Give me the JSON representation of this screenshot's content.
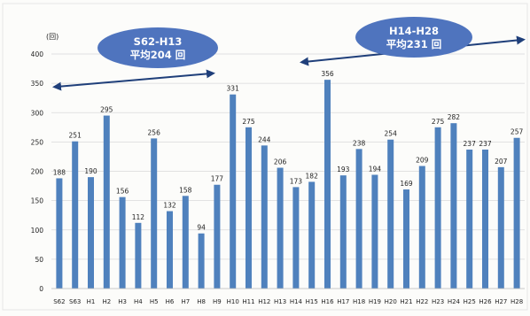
{
  "chart_data": {
    "type": "bar",
    "y_unit": "(回)",
    "ylim": [
      0,
      400
    ],
    "yticks": [
      0,
      50,
      100,
      150,
      200,
      250,
      300,
      350,
      400
    ],
    "grid": true,
    "categories": [
      "S62",
      "S63",
      "H1",
      "H2",
      "H3",
      "H4",
      "H5",
      "H6",
      "H7",
      "H8",
      "H9",
      "H10",
      "H11",
      "H12",
      "H13",
      "H14",
      "H15",
      "H16",
      "H17",
      "H18",
      "H19",
      "H20",
      "H21",
      "H22",
      "H23",
      "H24",
      "H25",
      "H26",
      "H27",
      "H28"
    ],
    "values": [
      188,
      251,
      190,
      295,
      156,
      112,
      256,
      132,
      158,
      94,
      177,
      331,
      275,
      244,
      206,
      173,
      182,
      356,
      193,
      238,
      194,
      254,
      169,
      209,
      275,
      282,
      237,
      237,
      207,
      257
    ],
    "annotations": [
      {
        "name": "period-1",
        "line1": "S62-H13",
        "line2": "平均204 回",
        "span": [
          "S62",
          "H13"
        ],
        "level": 204
      },
      {
        "name": "period-2",
        "line1": "H14-H28",
        "line2": "平均231 回",
        "span": [
          "H14",
          "H28"
        ],
        "level": 231
      }
    ],
    "colors": {
      "bar": "#4f81bd",
      "ellipse": "#4f74be",
      "ellipse_text": "#ffffff",
      "arrow": "#1f3f7a",
      "grid": "#d9d9d9",
      "text": "#222222"
    }
  }
}
